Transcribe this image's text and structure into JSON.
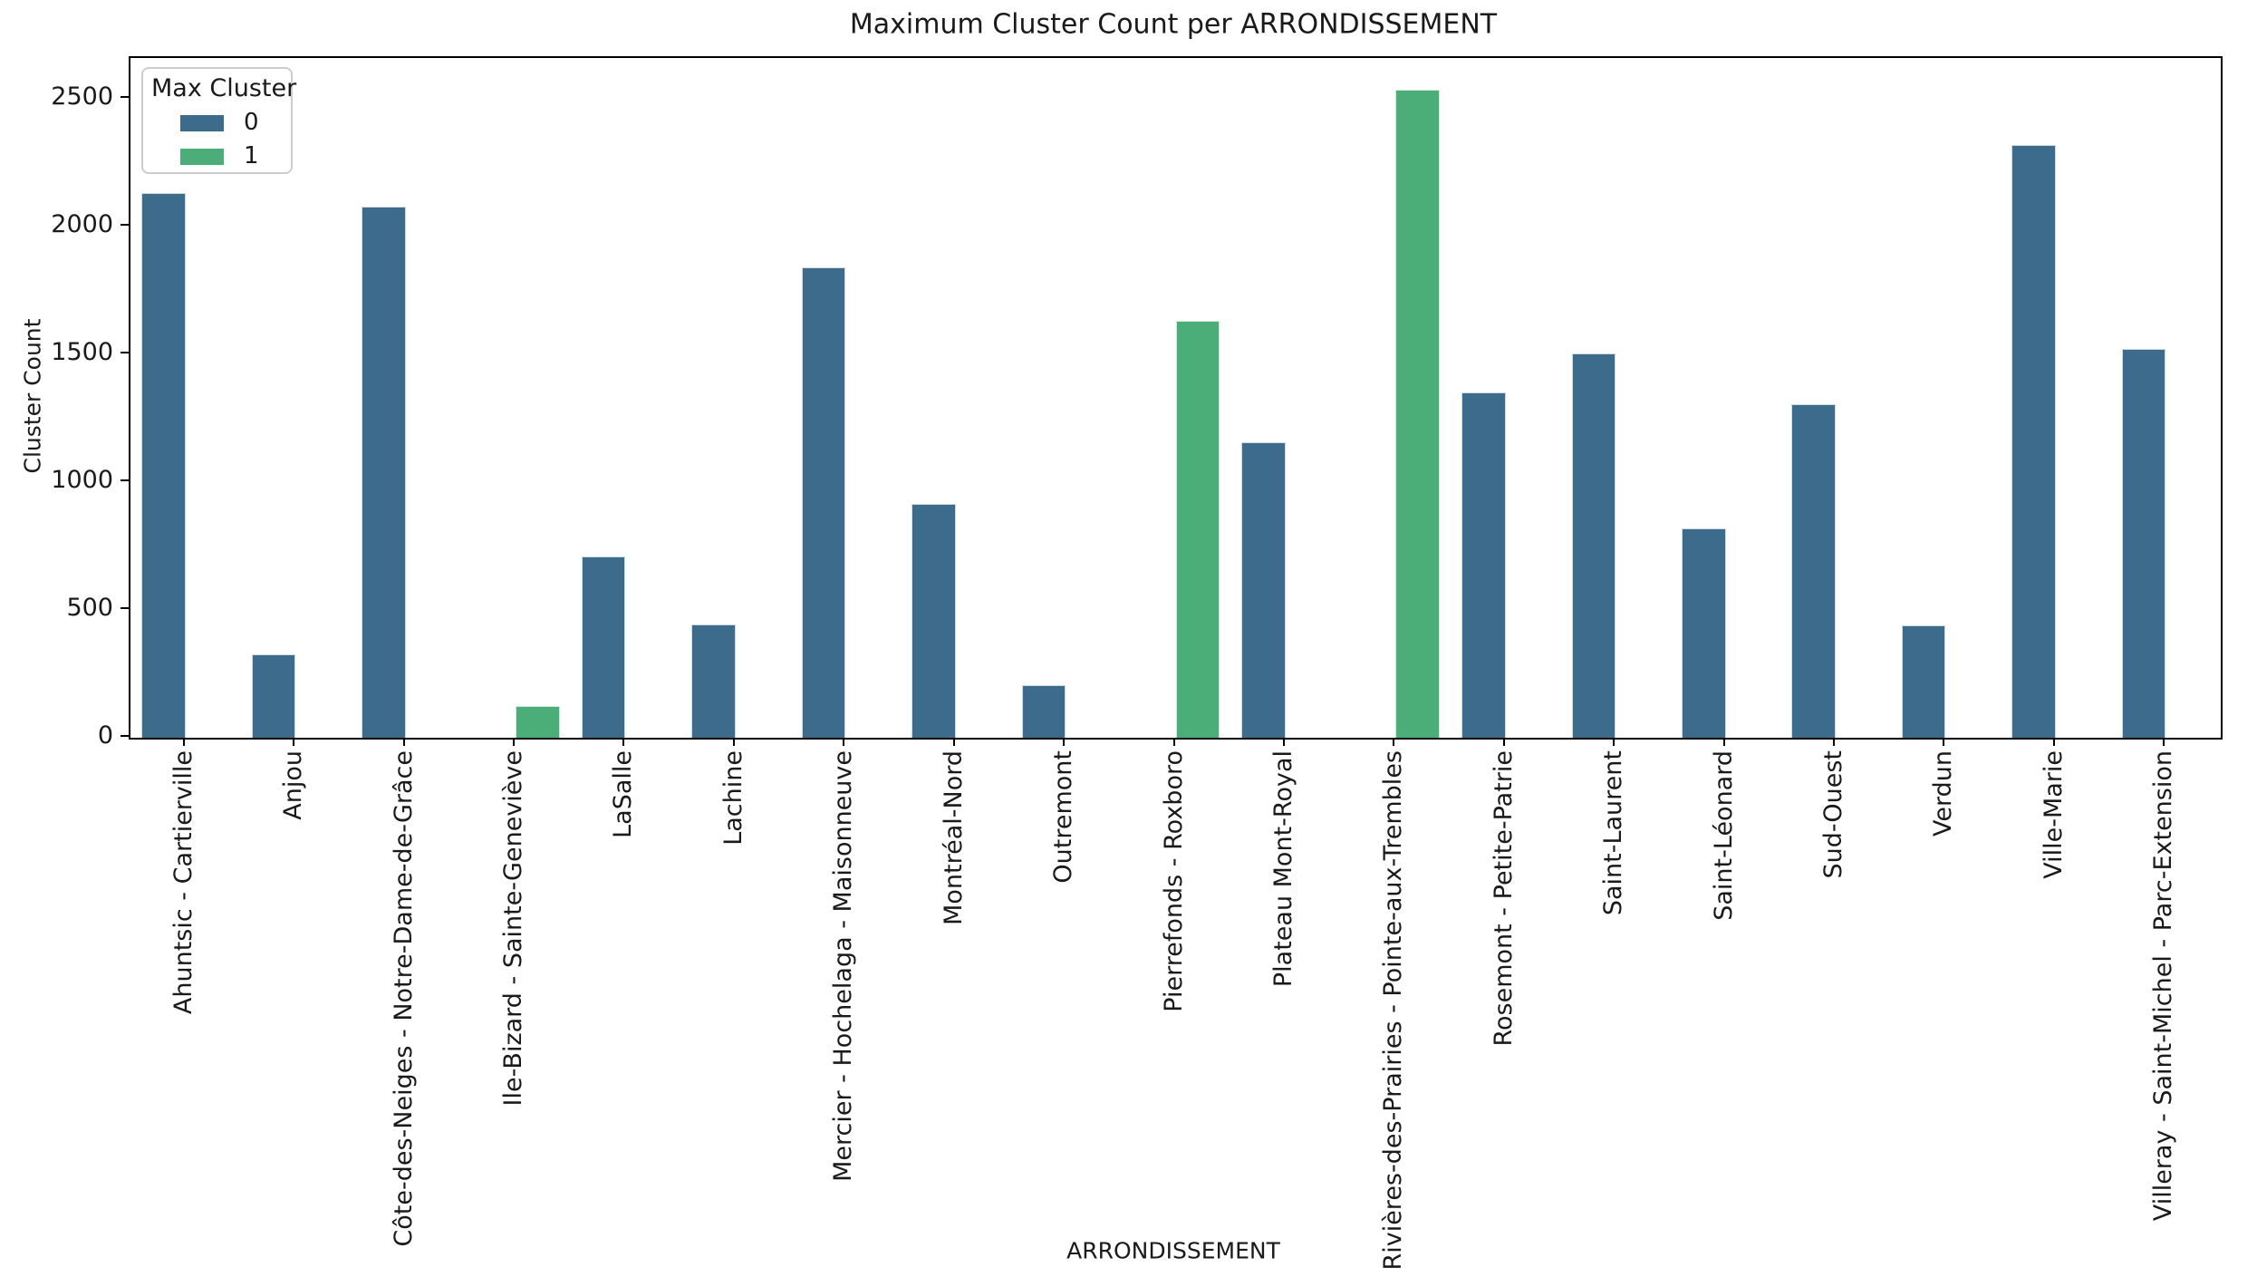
{
  "chart_data": {
    "type": "bar",
    "title": "Maximum Cluster Count per ARRONDISSEMENT",
    "xlabel": "ARRONDISSEMENT",
    "ylabel": "Cluster Count",
    "ylim": [
      0,
      2660
    ],
    "yticks": [
      0,
      500,
      1000,
      1500,
      2000,
      2500
    ],
    "grid": false,
    "legend": {
      "title": "Max Cluster",
      "position": "upper-left",
      "entries": [
        {
          "label": "0",
          "color": "#3d6b8c"
        },
        {
          "label": "1",
          "color": "#4bad77"
        }
      ]
    },
    "bars": [
      {
        "category": "Ahuntsic - Cartierville",
        "max_cluster": 0,
        "value": 2130
      },
      {
        "category": "Anjou",
        "max_cluster": 0,
        "value": 325
      },
      {
        "category": "Côte-des-Neiges - Notre-Dame-de-Grâce",
        "max_cluster": 0,
        "value": 2080
      },
      {
        "category": "Ile-Bizard - Sainte-Geneviève",
        "max_cluster": 1,
        "value": 125
      },
      {
        "category": "LaSalle",
        "max_cluster": 0,
        "value": 710
      },
      {
        "category": "Lachine",
        "max_cluster": 0,
        "value": 445
      },
      {
        "category": "Mercier - Hochelaga - Maisonneuve",
        "max_cluster": 0,
        "value": 1840
      },
      {
        "category": "Montréal-Nord",
        "max_cluster": 0,
        "value": 915
      },
      {
        "category": "Outremont",
        "max_cluster": 0,
        "value": 205
      },
      {
        "category": "Pierrefonds - Roxboro",
        "max_cluster": 1,
        "value": 1630
      },
      {
        "category": "Plateau Mont-Royal",
        "max_cluster": 0,
        "value": 1155
      },
      {
        "category": "Rivières-des-Prairies - Pointe-aux-Trembles",
        "max_cluster": 1,
        "value": 2535
      },
      {
        "category": "Rosemont - Petite-Patrie",
        "max_cluster": 0,
        "value": 1350
      },
      {
        "category": "Saint-Laurent",
        "max_cluster": 0,
        "value": 1505
      },
      {
        "category": "Saint-Léonard",
        "max_cluster": 0,
        "value": 820
      },
      {
        "category": "Sud-Ouest",
        "max_cluster": 0,
        "value": 1305
      },
      {
        "category": "Verdun",
        "max_cluster": 0,
        "value": 440
      },
      {
        "category": "Ville-Marie",
        "max_cluster": 0,
        "value": 2320
      },
      {
        "category": "Villeray - Saint-Michel - Parc-Extension",
        "max_cluster": 0,
        "value": 1520
      }
    ]
  }
}
